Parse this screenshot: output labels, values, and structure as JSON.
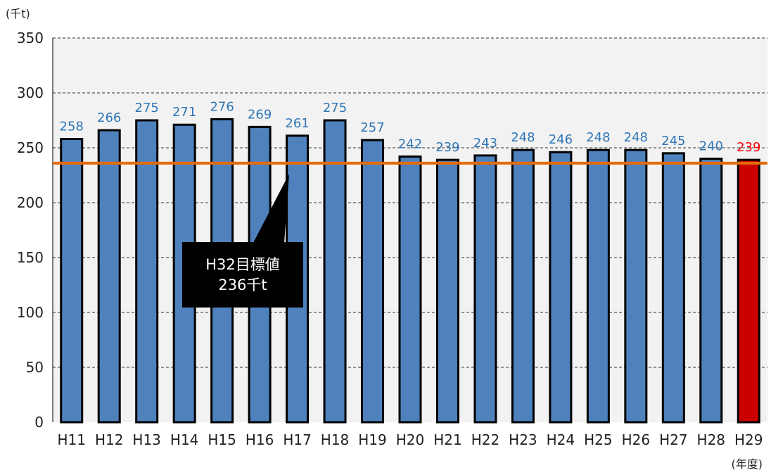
{
  "chart_data": {
    "type": "bar",
    "y_unit": "(千t)",
    "x_unit": "(年度)",
    "categories": [
      "H11",
      "H12",
      "H13",
      "H14",
      "H15",
      "H16",
      "H17",
      "H18",
      "H19",
      "H20",
      "H21",
      "H22",
      "H23",
      "H24",
      "H25",
      "H26",
      "H27",
      "H28",
      "H29"
    ],
    "values": [
      258,
      266,
      275,
      271,
      276,
      269,
      261,
      275,
      257,
      242,
      239,
      243,
      248,
      246,
      248,
      248,
      245,
      240,
      239
    ],
    "ylim": [
      0,
      350
    ],
    "yticks": [
      0,
      50,
      100,
      150,
      200,
      250,
      300,
      350
    ],
    "grid": true,
    "bar_color": "#4f81bd",
    "highlight_index": 18,
    "highlight_color": "#cc0000",
    "label_color": "#2e75b6",
    "highlight_label_color": "#ff0000",
    "target_line": {
      "value": 236,
      "color": "#e46c0a"
    },
    "callout": {
      "line1": "H32目標値",
      "line2": "236千t"
    }
  }
}
